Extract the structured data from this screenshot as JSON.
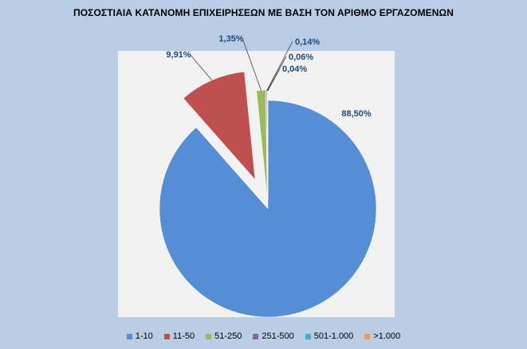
{
  "chart_data": {
    "type": "pie",
    "title": "ΠΟΣΟΣΤΙΑΙΑ ΚΑΤΑΝΟΜΗ ΕΠΙΧΕΙΡΗΣΕΩΝ ΜΕ ΒΑΣΗ ΤΟΝ ΑΡΙΘΜΟ ΕΡΓΑΖΟΜΕΝΩΝ",
    "categories": [
      "1-10",
      "11-50",
      "51-250",
      "251-500",
      "501-1.000",
      ">1.000"
    ],
    "values": [
      88.5,
      9.91,
      1.35,
      0.14,
      0.06,
      0.04
    ],
    "data_labels": [
      "88,50%",
      "9,91%",
      "1,35%",
      "0,14%",
      "0,06%",
      "0,04%"
    ],
    "colors": [
      "#558ed5",
      "#c0504d",
      "#9bbb59",
      "#8064a2",
      "#4bacc6",
      "#f79646"
    ],
    "exploded": true,
    "legend_position": "bottom"
  }
}
